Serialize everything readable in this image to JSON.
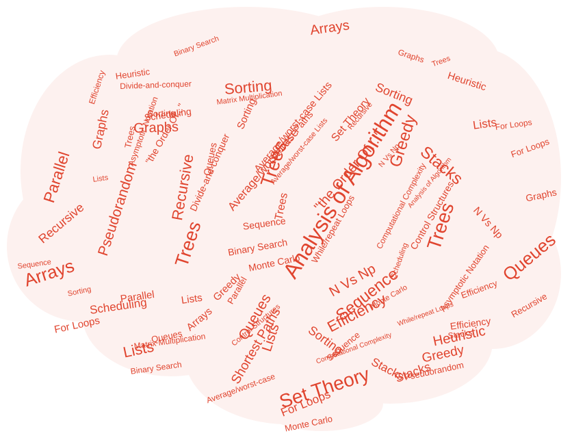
{
  "colors": {
    "word": "#e0442e",
    "word_dark": "#d73a24",
    "brain_fill": "#fdf1ef",
    "background": "#ffffff"
  },
  "words": [
    "Analysis of Algorithm",
    "Set Theory",
    "Trees",
    "Sorting",
    "Arrays",
    "Parallel",
    "Pseudorandom",
    "Recursive",
    "Graphs",
    "Greedy",
    "Stacks",
    "Queues",
    "Sequence",
    "Efficiency",
    "N Vs Np",
    "Lists",
    "Heuristic",
    "Scheduling",
    "For Loops",
    "Shortest Paths",
    "Monte Carlo",
    "Binary Search",
    "\"the Order Of...\"",
    "Average/worst-case",
    "Average/worst-case Lists",
    "Divide-and-conquer",
    "Matrix Multiplication",
    "Control Structures",
    "While/repeat Loops",
    "Asymptotic Notation",
    "Computational Complexity"
  ]
}
